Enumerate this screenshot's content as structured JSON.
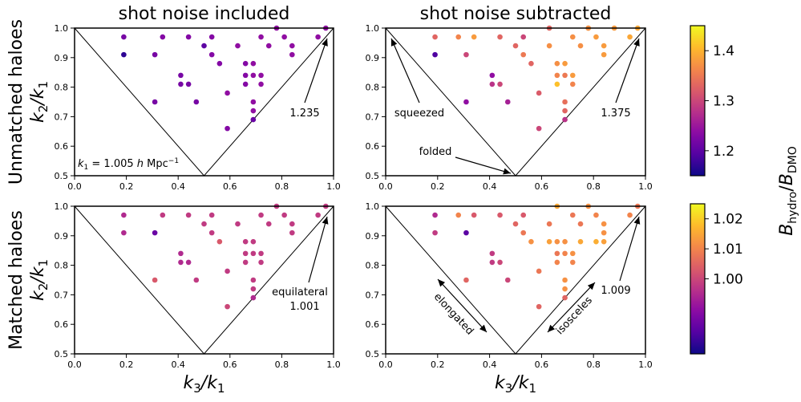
{
  "chart_data": [
    {
      "type": "scatter",
      "title": "shot noise included",
      "row_label": "Unmatched haloes",
      "xlabel": "k3/k1",
      "ylabel": "k2/k1",
      "xlim": [
        0.0,
        1.0
      ],
      "ylim": [
        0.5,
        1.0
      ],
      "colorbar": "top",
      "annotations": [
        "k1 = 1.005 h Mpc−1",
        "1.235"
      ],
      "annotation_colors": [
        "#000000",
        "#7a0d9e"
      ],
      "points": [
        {
          "x": 0.19,
          "y": 0.97,
          "c": 1.22
        },
        {
          "x": 0.19,
          "y": 0.91,
          "c": 1.17
        },
        {
          "x": 0.31,
          "y": 0.91,
          "c": 1.22
        },
        {
          "x": 0.31,
          "y": 0.75,
          "c": 1.22
        },
        {
          "x": 0.34,
          "y": 0.97,
          "c": 1.23
        },
        {
          "x": 0.41,
          "y": 0.84,
          "c": 1.22
        },
        {
          "x": 0.41,
          "y": 0.81,
          "c": 1.22
        },
        {
          "x": 0.44,
          "y": 0.81,
          "c": 1.22
        },
        {
          "x": 0.44,
          "y": 0.97,
          "c": 1.23
        },
        {
          "x": 0.47,
          "y": 0.75,
          "c": 1.22
        },
        {
          "x": 0.5,
          "y": 0.94,
          "c": 1.2
        },
        {
          "x": 0.53,
          "y": 0.91,
          "c": 1.23
        },
        {
          "x": 0.53,
          "y": 0.97,
          "c": 1.23
        },
        {
          "x": 0.56,
          "y": 0.88,
          "c": 1.23
        },
        {
          "x": 0.59,
          "y": 0.78,
          "c": 1.24
        },
        {
          "x": 0.59,
          "y": 0.66,
          "c": 1.23
        },
        {
          "x": 0.63,
          "y": 0.94,
          "c": 1.24
        },
        {
          "x": 0.66,
          "y": 0.88,
          "c": 1.23
        },
        {
          "x": 0.66,
          "y": 0.84,
          "c": 1.23
        },
        {
          "x": 0.66,
          "y": 0.81,
          "c": 1.23
        },
        {
          "x": 0.69,
          "y": 0.88,
          "c": 1.24
        },
        {
          "x": 0.69,
          "y": 0.84,
          "c": 1.24
        },
        {
          "x": 0.69,
          "y": 0.75,
          "c": 1.24
        },
        {
          "x": 0.69,
          "y": 0.72,
          "c": 1.24
        },
        {
          "x": 0.69,
          "y": 0.69,
          "c": 1.21
        },
        {
          "x": 0.72,
          "y": 0.97,
          "c": 1.24
        },
        {
          "x": 0.72,
          "y": 0.84,
          "c": 1.24
        },
        {
          "x": 0.72,
          "y": 0.81,
          "c": 1.24
        },
        {
          "x": 0.75,
          "y": 0.94,
          "c": 1.24
        },
        {
          "x": 0.78,
          "y": 1.0,
          "c": 1.24
        },
        {
          "x": 0.81,
          "y": 0.97,
          "c": 1.24
        },
        {
          "x": 0.84,
          "y": 0.94,
          "c": 1.24
        },
        {
          "x": 0.84,
          "y": 0.91,
          "c": 1.24
        },
        {
          "x": 0.94,
          "y": 0.97,
          "c": 1.24
        },
        {
          "x": 0.97,
          "y": 1.0,
          "c": 1.24
        }
      ]
    },
    {
      "type": "scatter",
      "title": "shot noise subtracted",
      "xlabel": "k3/k1",
      "ylabel": "k2/k1",
      "xlim": [
        0.0,
        1.0
      ],
      "ylim": [
        0.5,
        1.0
      ],
      "colorbar": "top",
      "annotations": [
        "squeezed",
        "folded",
        "1.375"
      ],
      "annotation_colors": [
        "#000000",
        "#000000",
        "#f3893b"
      ],
      "points": [
        {
          "x": 0.19,
          "y": 0.97,
          "c": 1.33
        },
        {
          "x": 0.19,
          "y": 0.91,
          "c": 1.19
        },
        {
          "x": 0.28,
          "y": 0.97,
          "c": 1.36
        },
        {
          "x": 0.31,
          "y": 0.91,
          "c": 1.3
        },
        {
          "x": 0.31,
          "y": 0.75,
          "c": 1.24
        },
        {
          "x": 0.34,
          "y": 0.97,
          "c": 1.38
        },
        {
          "x": 0.41,
          "y": 0.84,
          "c": 1.24
        },
        {
          "x": 0.41,
          "y": 0.81,
          "c": 1.28
        },
        {
          "x": 0.44,
          "y": 0.81,
          "c": 1.3
        },
        {
          "x": 0.44,
          "y": 0.97,
          "c": 1.33
        },
        {
          "x": 0.47,
          "y": 0.75,
          "c": 1.26
        },
        {
          "x": 0.5,
          "y": 0.94,
          "c": 1.33
        },
        {
          "x": 0.53,
          "y": 0.91,
          "c": 1.35
        },
        {
          "x": 0.53,
          "y": 0.97,
          "c": 1.3
        },
        {
          "x": 0.56,
          "y": 0.88,
          "c": 1.33
        },
        {
          "x": 0.59,
          "y": 0.78,
          "c": 1.32
        },
        {
          "x": 0.59,
          "y": 0.66,
          "c": 1.3
        },
        {
          "x": 0.63,
          "y": 0.94,
          "c": 1.37
        },
        {
          "x": 0.66,
          "y": 0.88,
          "c": 1.37
        },
        {
          "x": 0.66,
          "y": 0.84,
          "c": 1.36
        },
        {
          "x": 0.66,
          "y": 0.81,
          "c": 1.41
        },
        {
          "x": 0.69,
          "y": 0.88,
          "c": 1.38
        },
        {
          "x": 0.69,
          "y": 0.84,
          "c": 1.35
        },
        {
          "x": 0.69,
          "y": 0.75,
          "c": 1.34
        },
        {
          "x": 0.69,
          "y": 0.72,
          "c": 1.33
        },
        {
          "x": 0.69,
          "y": 0.69,
          "c": 1.28
        },
        {
          "x": 0.72,
          "y": 0.97,
          "c": 1.37
        },
        {
          "x": 0.72,
          "y": 0.84,
          "c": 1.38
        },
        {
          "x": 0.72,
          "y": 0.81,
          "c": 1.36
        },
        {
          "x": 0.75,
          "y": 0.94,
          "c": 1.37
        },
        {
          "x": 0.78,
          "y": 1.0,
          "c": 1.4
        },
        {
          "x": 0.81,
          "y": 0.97,
          "c": 1.38
        },
        {
          "x": 0.84,
          "y": 0.94,
          "c": 1.38
        },
        {
          "x": 0.84,
          "y": 0.91,
          "c": 1.38
        },
        {
          "x": 0.88,
          "y": 1.0,
          "c": 1.38
        },
        {
          "x": 0.94,
          "y": 0.97,
          "c": 1.39
        },
        {
          "x": 0.97,
          "y": 1.0,
          "c": 1.39
        },
        {
          "x": 0.63,
          "y": 1.0,
          "c": 1.33
        },
        {
          "x": 0.78,
          "y": 1.0,
          "c": 1.37
        }
      ]
    },
    {
      "type": "scatter",
      "row_label": "Matched haloes",
      "xlabel": "k3/k1",
      "ylabel": "k2/k1",
      "xlim": [
        0.0,
        1.0
      ],
      "ylim": [
        0.5,
        1.0
      ],
      "colorbar": "bottom",
      "annotations": [
        "equilateral",
        "1.001"
      ],
      "annotation_colors": [
        "#000000",
        "#6a0fa0"
      ],
      "points": [
        {
          "x": 0.19,
          "y": 0.97,
          "c": 0.995
        },
        {
          "x": 0.19,
          "y": 0.91,
          "c": 0.995
        },
        {
          "x": 0.31,
          "y": 0.91,
          "c": 0.985
        },
        {
          "x": 0.31,
          "y": 0.75,
          "c": 1.003
        },
        {
          "x": 0.34,
          "y": 0.97,
          "c": 0.998
        },
        {
          "x": 0.41,
          "y": 0.84,
          "c": 0.995
        },
        {
          "x": 0.41,
          "y": 0.81,
          "c": 0.995
        },
        {
          "x": 0.44,
          "y": 0.81,
          "c": 0.995
        },
        {
          "x": 0.44,
          "y": 0.97,
          "c": 0.998
        },
        {
          "x": 0.47,
          "y": 0.75,
          "c": 0.998
        },
        {
          "x": 0.5,
          "y": 0.94,
          "c": 0.998
        },
        {
          "x": 0.53,
          "y": 0.91,
          "c": 0.998
        },
        {
          "x": 0.53,
          "y": 0.97,
          "c": 0.998
        },
        {
          "x": 0.56,
          "y": 0.88,
          "c": 1.003
        },
        {
          "x": 0.59,
          "y": 0.78,
          "c": 0.998
        },
        {
          "x": 0.59,
          "y": 0.66,
          "c": 1.0
        },
        {
          "x": 0.63,
          "y": 0.94,
          "c": 0.998
        },
        {
          "x": 0.66,
          "y": 0.88,
          "c": 0.998
        },
        {
          "x": 0.66,
          "y": 0.84,
          "c": 0.998
        },
        {
          "x": 0.66,
          "y": 0.81,
          "c": 0.998
        },
        {
          "x": 0.69,
          "y": 0.88,
          "c": 0.998
        },
        {
          "x": 0.69,
          "y": 0.84,
          "c": 0.998
        },
        {
          "x": 0.69,
          "y": 0.75,
          "c": 0.998
        },
        {
          "x": 0.69,
          "y": 0.72,
          "c": 0.998
        },
        {
          "x": 0.69,
          "y": 0.69,
          "c": 0.995
        },
        {
          "x": 0.72,
          "y": 0.97,
          "c": 0.998
        },
        {
          "x": 0.72,
          "y": 0.84,
          "c": 0.998
        },
        {
          "x": 0.72,
          "y": 0.81,
          "c": 0.998
        },
        {
          "x": 0.75,
          "y": 0.94,
          "c": 0.998
        },
        {
          "x": 0.78,
          "y": 1.0,
          "c": 0.998
        },
        {
          "x": 0.81,
          "y": 0.97,
          "c": 0.998
        },
        {
          "x": 0.84,
          "y": 0.94,
          "c": 0.998
        },
        {
          "x": 0.84,
          "y": 0.91,
          "c": 0.998
        },
        {
          "x": 0.94,
          "y": 0.97,
          "c": 0.998
        },
        {
          "x": 0.97,
          "y": 1.0,
          "c": 0.998
        }
      ]
    },
    {
      "type": "scatter",
      "xlabel": "k3/k1",
      "ylabel": "k2/k1",
      "xlim": [
        0.0,
        1.0
      ],
      "ylim": [
        0.5,
        1.0
      ],
      "colorbar": "bottom",
      "annotations": [
        "elongated",
        "isosceles",
        "1.009"
      ],
      "annotation_colors": [
        "#000000",
        "#000000",
        "#c2297f"
      ],
      "points": [
        {
          "x": 0.19,
          "y": 0.97,
          "c": 0.995
        },
        {
          "x": 0.19,
          "y": 0.91,
          "c": 0.998
        },
        {
          "x": 0.28,
          "y": 0.97,
          "c": 1.01
        },
        {
          "x": 0.31,
          "y": 0.91,
          "c": 0.983
        },
        {
          "x": 0.31,
          "y": 0.75,
          "c": 1.005
        },
        {
          "x": 0.34,
          "y": 0.97,
          "c": 1.003
        },
        {
          "x": 0.41,
          "y": 0.84,
          "c": 0.998
        },
        {
          "x": 0.41,
          "y": 0.81,
          "c": 0.998
        },
        {
          "x": 0.44,
          "y": 0.81,
          "c": 1.0
        },
        {
          "x": 0.44,
          "y": 0.97,
          "c": 1.003
        },
        {
          "x": 0.47,
          "y": 0.75,
          "c": 1.0
        },
        {
          "x": 0.5,
          "y": 0.94,
          "c": 1.005
        },
        {
          "x": 0.53,
          "y": 0.91,
          "c": 1.008
        },
        {
          "x": 0.53,
          "y": 0.97,
          "c": 1.003
        },
        {
          "x": 0.56,
          "y": 0.88,
          "c": 1.012
        },
        {
          "x": 0.59,
          "y": 0.78,
          "c": 1.008
        },
        {
          "x": 0.59,
          "y": 0.66,
          "c": 1.005
        },
        {
          "x": 0.63,
          "y": 0.94,
          "c": 1.008
        },
        {
          "x": 0.63,
          "y": 0.88,
          "c": 1.014
        },
        {
          "x": 0.66,
          "y": 0.88,
          "c": 1.012
        },
        {
          "x": 0.66,
          "y": 0.84,
          "c": 1.008
        },
        {
          "x": 0.66,
          "y": 0.81,
          "c": 1.01
        },
        {
          "x": 0.69,
          "y": 0.88,
          "c": 1.012
        },
        {
          "x": 0.69,
          "y": 0.84,
          "c": 1.01
        },
        {
          "x": 0.69,
          "y": 0.75,
          "c": 1.012
        },
        {
          "x": 0.69,
          "y": 0.72,
          "c": 1.012
        },
        {
          "x": 0.69,
          "y": 0.69,
          "c": 1.005
        },
        {
          "x": 0.72,
          "y": 0.97,
          "c": 1.008
        },
        {
          "x": 0.72,
          "y": 0.84,
          "c": 1.012
        },
        {
          "x": 0.72,
          "y": 0.81,
          "c": 1.01
        },
        {
          "x": 0.75,
          "y": 0.94,
          "c": 1.008
        },
        {
          "x": 0.75,
          "y": 0.88,
          "c": 1.015
        },
        {
          "x": 0.78,
          "y": 1.0,
          "c": 1.012
        },
        {
          "x": 0.81,
          "y": 0.97,
          "c": 1.01
        },
        {
          "x": 0.81,
          "y": 0.88,
          "c": 1.016
        },
        {
          "x": 0.84,
          "y": 0.94,
          "c": 1.012
        },
        {
          "x": 0.84,
          "y": 0.91,
          "c": 1.012
        },
        {
          "x": 0.84,
          "y": 0.88,
          "c": 1.014
        },
        {
          "x": 0.94,
          "y": 0.97,
          "c": 1.01
        },
        {
          "x": 0.97,
          "y": 1.0,
          "c": 1.008
        },
        {
          "x": 0.66,
          "y": 1.0,
          "c": 1.015
        }
      ]
    }
  ],
  "colorbars": {
    "label": "B_hydro/B_DMO",
    "top": {
      "min": 1.15,
      "max": 1.45,
      "ticks": [
        "1.2",
        "1.3",
        "1.4"
      ],
      "tick_values": [
        1.2,
        1.3,
        1.4
      ]
    },
    "bottom": {
      "min": 0.975,
      "max": 1.025,
      "ticks": [
        "1.00",
        "1.01",
        "1.02"
      ],
      "tick_values": [
        1.0,
        1.01,
        1.02
      ]
    },
    "colormap": "plasma"
  },
  "axes": {
    "x_ticks": [
      "0.0",
      "0.2",
      "0.4",
      "0.6",
      "0.8",
      "1.0"
    ],
    "x_tick_values": [
      0.0,
      0.2,
      0.4,
      0.6,
      0.8,
      1.0
    ],
    "y_ticks": [
      "0.5",
      "0.6",
      "0.7",
      "0.8",
      "0.9",
      "1.0"
    ],
    "y_tick_values": [
      0.5,
      0.6,
      0.7,
      0.8,
      0.9,
      1.0
    ]
  }
}
